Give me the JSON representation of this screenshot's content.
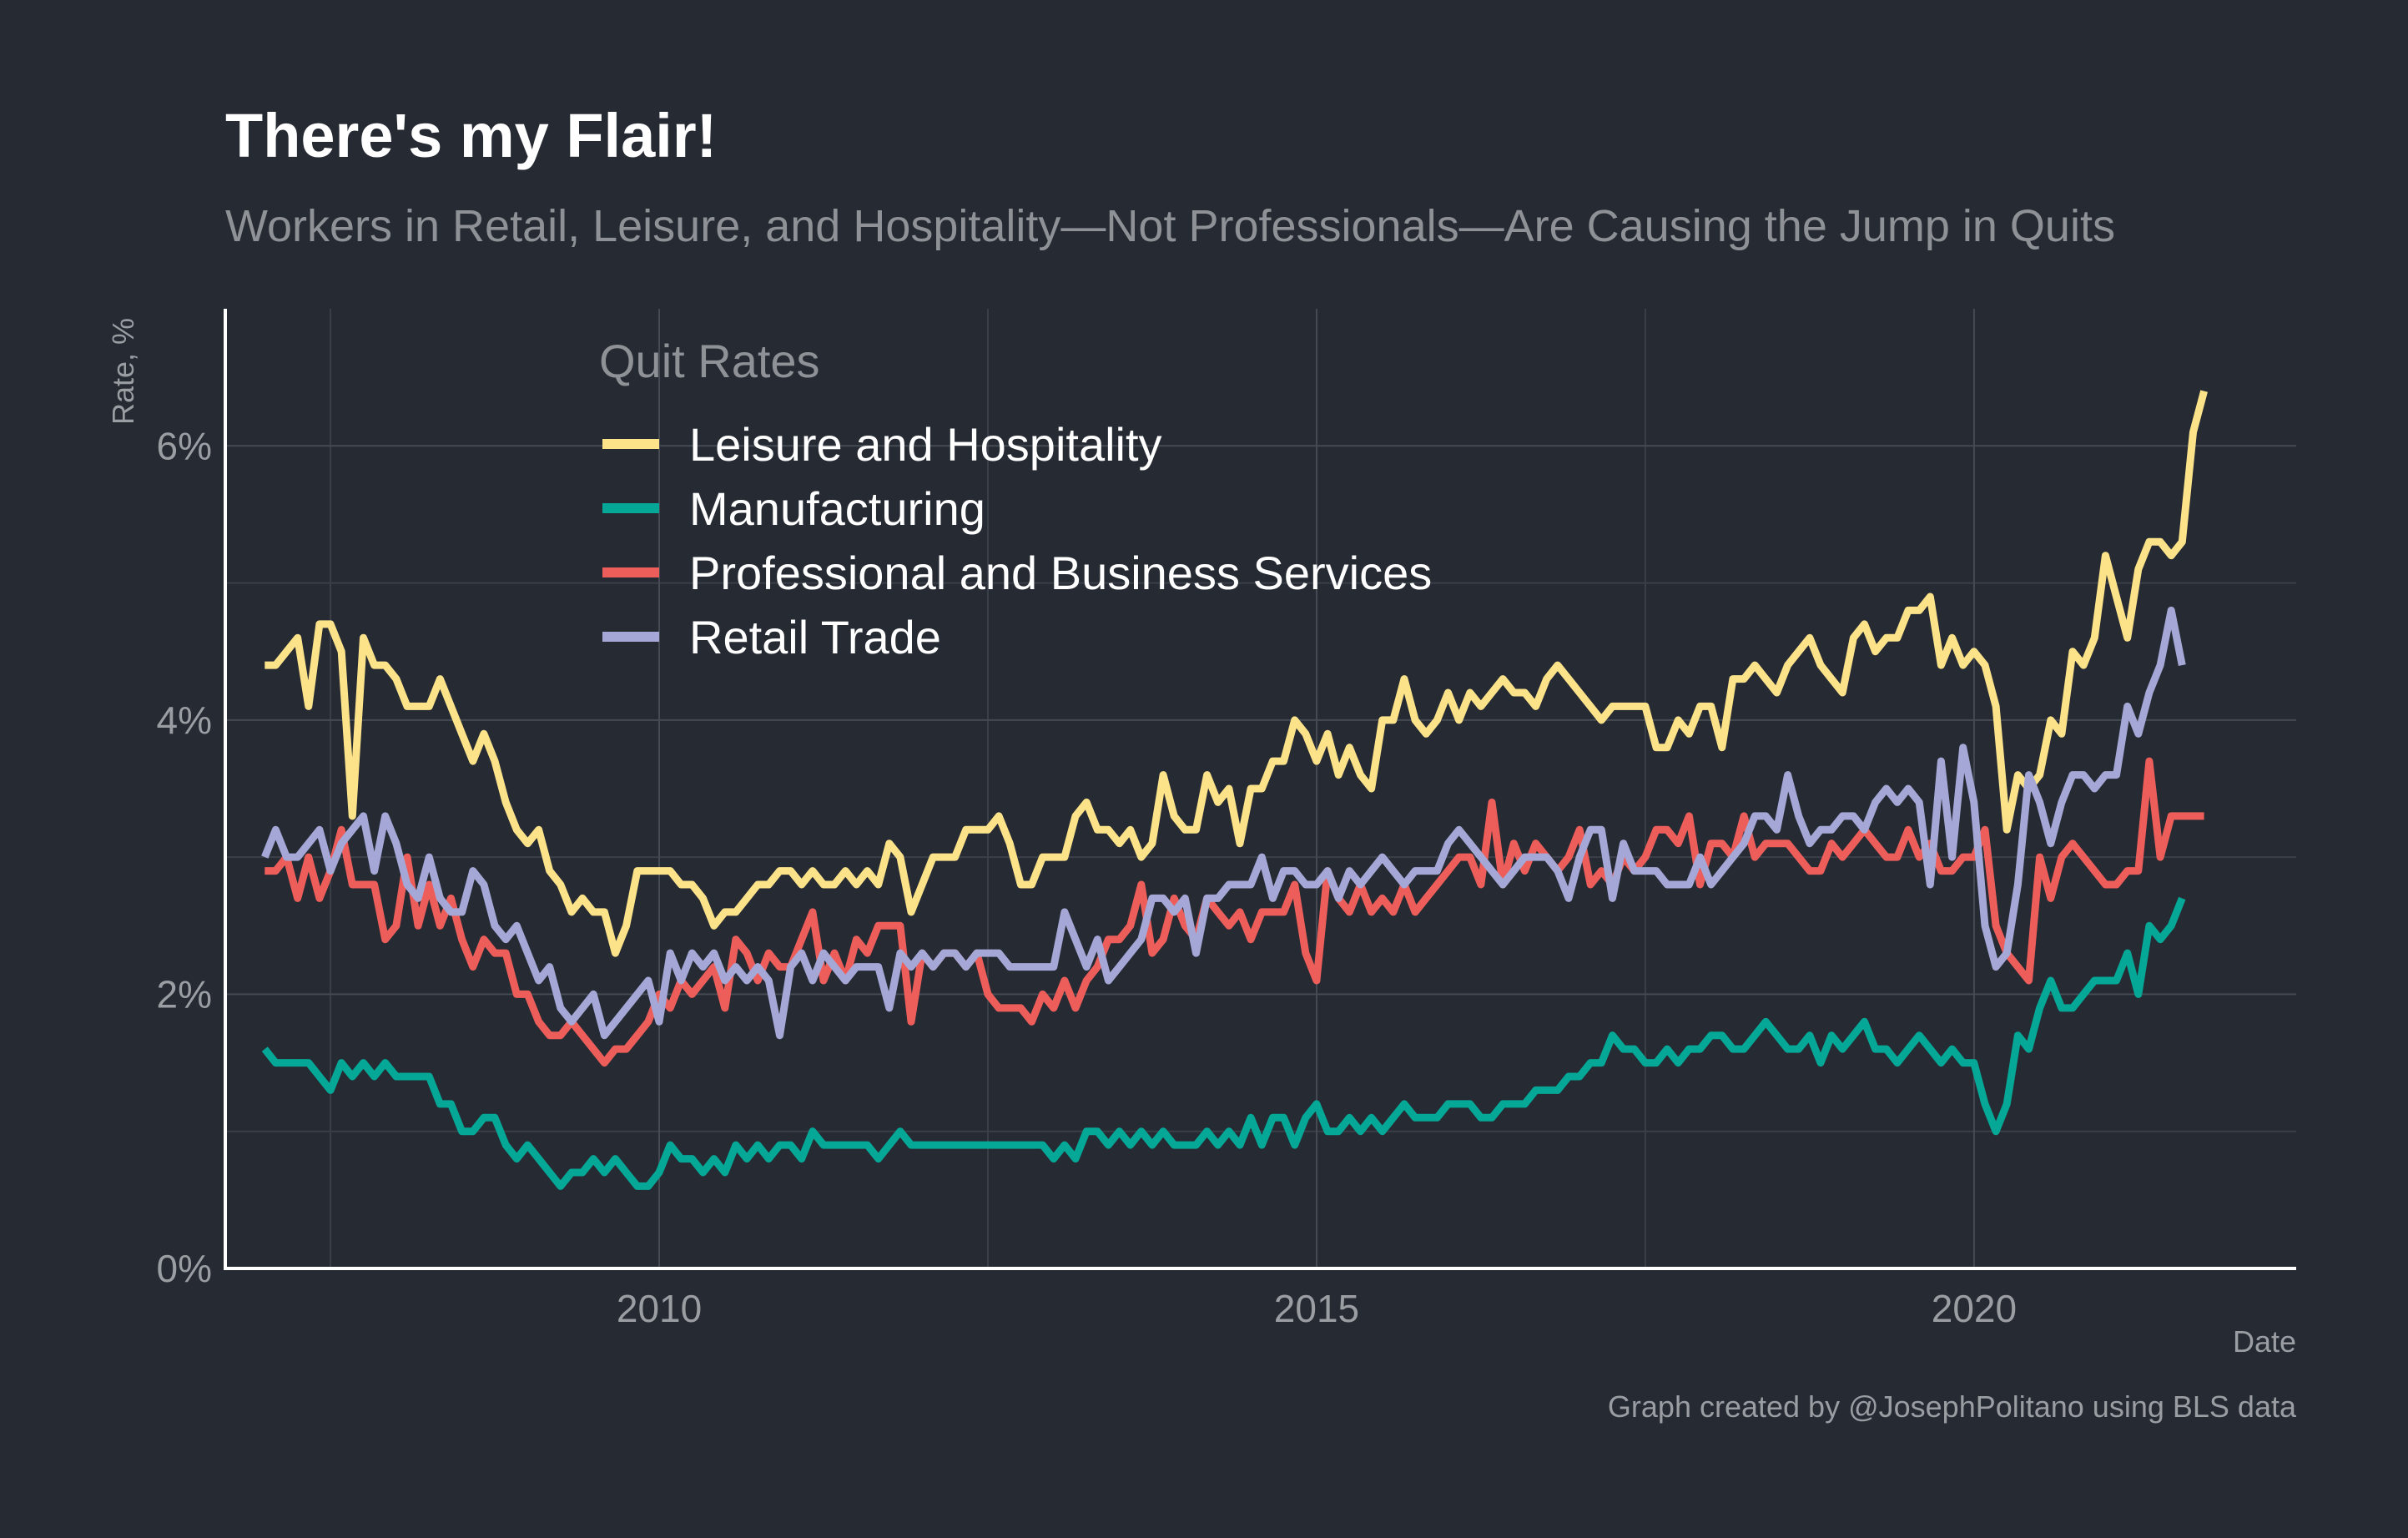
{
  "title": "There's my Flair!",
  "subtitle": "Workers in Retail, Leisure, and Hospitality—Not Professionals—Are Causing the Jump in Quits",
  "caption": "Graph created by @JosephPolitano using BLS data",
  "chart_data": {
    "type": "line",
    "xlabel": "Date",
    "ylabel": "Rate, %",
    "xlim": [
      2006.7,
      2022.45
    ],
    "ylim": [
      0,
      7
    ],
    "x_ticks": [
      2010,
      2015,
      2020
    ],
    "x_tick_labels": [
      "2010",
      "2015",
      "2020"
    ],
    "y_ticks": [
      0,
      2,
      4,
      6
    ],
    "y_tick_labels": [
      "0%",
      "2%",
      "4%",
      "6%"
    ],
    "grid": true,
    "legend_title": "Quit Rates",
    "legend_position": "top-left",
    "x_start": 2007.0,
    "x_step": 0.08333,
    "series": [
      {
        "name": "Leisure and Hospitality",
        "color": "#fce38a",
        "values": [
          4.4,
          4.4,
          4.5,
          4.6,
          4.1,
          4.7,
          4.7,
          4.5,
          3.3,
          4.6,
          4.4,
          4.4,
          4.3,
          4.1,
          4.1,
          4.1,
          4.3,
          4.1,
          3.9,
          3.7,
          3.9,
          3.7,
          3.4,
          3.2,
          3.1,
          3.2,
          2.9,
          2.8,
          2.6,
          2.7,
          2.6,
          2.6,
          2.3,
          2.5,
          2.9,
          2.9,
          2.9,
          2.9,
          2.8,
          2.8,
          2.7,
          2.5,
          2.6,
          2.6,
          2.7,
          2.8,
          2.8,
          2.9,
          2.9,
          2.8,
          2.9,
          2.8,
          2.8,
          2.9,
          2.8,
          2.9,
          2.8,
          3.1,
          3.0,
          2.6,
          2.8,
          3.0,
          3.0,
          3.0,
          3.2,
          3.2,
          3.2,
          3.3,
          3.1,
          2.8,
          2.8,
          3.0,
          3.0,
          3.0,
          3.3,
          3.4,
          3.2,
          3.2,
          3.1,
          3.2,
          3.0,
          3.1,
          3.6,
          3.3,
          3.2,
          3.2,
          3.6,
          3.4,
          3.5,
          3.1,
          3.5,
          3.5,
          3.7,
          3.7,
          4.0,
          3.9,
          3.7,
          3.9,
          3.6,
          3.8,
          3.6,
          3.5,
          4.0,
          4.0,
          4.3,
          4.0,
          3.9,
          4.0,
          4.2,
          4.0,
          4.2,
          4.1,
          4.2,
          4.3,
          4.2,
          4.2,
          4.1,
          4.3,
          4.4,
          4.3,
          4.2,
          4.1,
          4.0,
          4.1,
          4.1,
          4.1,
          4.1,
          3.8,
          3.8,
          4.0,
          3.9,
          4.1,
          4.1,
          3.8,
          4.3,
          4.3,
          4.4,
          4.3,
          4.2,
          4.4,
          4.5,
          4.6,
          4.4,
          4.3,
          4.2,
          4.6,
          4.7,
          4.5,
          4.6,
          4.6,
          4.8,
          4.8,
          4.9,
          4.4,
          4.6,
          4.4,
          4.5,
          4.4,
          4.1,
          3.2,
          3.6,
          3.5,
          3.6,
          4.0,
          3.9,
          4.5,
          4.4,
          4.6,
          5.2,
          4.9,
          4.6,
          5.1,
          5.3,
          5.3,
          5.2,
          5.3,
          6.1,
          6.4
        ]
      },
      {
        "name": "Manufacturing",
        "color": "#05a896",
        "values": [
          1.6,
          1.5,
          1.5,
          1.5,
          1.5,
          1.4,
          1.3,
          1.5,
          1.4,
          1.5,
          1.4,
          1.5,
          1.4,
          1.4,
          1.4,
          1.4,
          1.2,
          1.2,
          1.0,
          1.0,
          1.1,
          1.1,
          0.9,
          0.8,
          0.9,
          0.8,
          0.7,
          0.6,
          0.7,
          0.7,
          0.8,
          0.7,
          0.8,
          0.7,
          0.6,
          0.6,
          0.7,
          0.9,
          0.8,
          0.8,
          0.7,
          0.8,
          0.7,
          0.9,
          0.8,
          0.9,
          0.8,
          0.9,
          0.9,
          0.8,
          1.0,
          0.9,
          0.9,
          0.9,
          0.9,
          0.9,
          0.8,
          0.9,
          1.0,
          0.9,
          0.9,
          0.9,
          0.9,
          0.9,
          0.9,
          0.9,
          0.9,
          0.9,
          0.9,
          0.9,
          0.9,
          0.9,
          0.8,
          0.9,
          0.8,
          1.0,
          1.0,
          0.9,
          1.0,
          0.9,
          1.0,
          0.9,
          1.0,
          0.9,
          0.9,
          0.9,
          1.0,
          0.9,
          1.0,
          0.9,
          1.1,
          0.9,
          1.1,
          1.1,
          0.9,
          1.1,
          1.2,
          1.0,
          1.0,
          1.1,
          1.0,
          1.1,
          1.0,
          1.1,
          1.2,
          1.1,
          1.1,
          1.1,
          1.2,
          1.2,
          1.2,
          1.1,
          1.1,
          1.2,
          1.2,
          1.2,
          1.3,
          1.3,
          1.3,
          1.4,
          1.4,
          1.5,
          1.5,
          1.7,
          1.6,
          1.6,
          1.5,
          1.5,
          1.6,
          1.5,
          1.6,
          1.6,
          1.7,
          1.7,
          1.6,
          1.6,
          1.7,
          1.8,
          1.7,
          1.6,
          1.6,
          1.7,
          1.5,
          1.7,
          1.6,
          1.7,
          1.8,
          1.6,
          1.6,
          1.5,
          1.6,
          1.7,
          1.6,
          1.5,
          1.6,
          1.5,
          1.5,
          1.2,
          1.0,
          1.2,
          1.7,
          1.6,
          1.9,
          2.1,
          1.9,
          1.9,
          2.0,
          2.1,
          2.1,
          2.1,
          2.3,
          2.0,
          2.5,
          2.4,
          2.5,
          2.7
        ]
      },
      {
        "name": "Professional and Business Services",
        "color": "#ed5e5b",
        "values": [
          2.9,
          2.9,
          3.0,
          2.7,
          3.0,
          2.7,
          2.9,
          3.2,
          2.8,
          2.8,
          2.8,
          2.4,
          2.5,
          3.0,
          2.5,
          2.8,
          2.5,
          2.7,
          2.4,
          2.2,
          2.4,
          2.3,
          2.3,
          2.0,
          2.0,
          1.8,
          1.7,
          1.7,
          1.8,
          1.7,
          1.6,
          1.5,
          1.6,
          1.6,
          1.7,
          1.8,
          2.0,
          1.9,
          2.1,
          2.0,
          2.1,
          2.2,
          1.9,
          2.4,
          2.3,
          2.1,
          2.3,
          2.2,
          2.2,
          2.4,
          2.6,
          2.1,
          2.3,
          2.1,
          2.4,
          2.3,
          2.5,
          2.5,
          2.5,
          1.8,
          2.3,
          2.2,
          2.3,
          2.3,
          2.2,
          2.3,
          2.0,
          1.9,
          1.9,
          1.9,
          1.8,
          2.0,
          1.9,
          2.1,
          1.9,
          2.1,
          2.2,
          2.4,
          2.4,
          2.5,
          2.8,
          2.3,
          2.4,
          2.7,
          2.5,
          2.4,
          2.7,
          2.6,
          2.5,
          2.6,
          2.4,
          2.6,
          2.6,
          2.6,
          2.8,
          2.3,
          2.1,
          2.9,
          2.7,
          2.6,
          2.8,
          2.6,
          2.7,
          2.6,
          2.8,
          2.6,
          2.7,
          2.8,
          2.9,
          3.0,
          3.0,
          2.8,
          3.4,
          2.8,
          3.1,
          2.9,
          3.1,
          3.0,
          2.9,
          3.0,
          3.2,
          2.8,
          2.9,
          2.8,
          3.0,
          2.9,
          3.0,
          3.2,
          3.2,
          3.1,
          3.3,
          2.8,
          3.1,
          3.1,
          3.0,
          3.3,
          3.0,
          3.1,
          3.1,
          3.1,
          3.0,
          2.9,
          2.9,
          3.1,
          3.0,
          3.1,
          3.2,
          3.1,
          3.0,
          3.0,
          3.2,
          3.0,
          3.1,
          2.9,
          2.9,
          3.0,
          3.0,
          3.2,
          2.5,
          2.3,
          2.2,
          2.1,
          3.0,
          2.7,
          3.0,
          3.1,
          3.0,
          2.9,
          2.8,
          2.8,
          2.9,
          2.9,
          3.7,
          3.0,
          3.3,
          3.3,
          3.3,
          3.3
        ]
      },
      {
        "name": "Retail Trade",
        "color": "#a5a8d6",
        "values": [
          3.0,
          3.2,
          3.0,
          3.0,
          3.1,
          3.2,
          2.9,
          3.1,
          3.2,
          3.3,
          2.9,
          3.3,
          3.1,
          2.8,
          2.7,
          3.0,
          2.7,
          2.6,
          2.6,
          2.9,
          2.8,
          2.5,
          2.4,
          2.5,
          2.3,
          2.1,
          2.2,
          1.9,
          1.8,
          1.9,
          2.0,
          1.7,
          1.8,
          1.9,
          2.0,
          2.1,
          1.8,
          2.3,
          2.1,
          2.3,
          2.2,
          2.3,
          2.1,
          2.2,
          2.1,
          2.2,
          2.1,
          1.7,
          2.2,
          2.3,
          2.1,
          2.3,
          2.2,
          2.1,
          2.2,
          2.2,
          2.2,
          1.9,
          2.3,
          2.2,
          2.3,
          2.2,
          2.3,
          2.3,
          2.2,
          2.3,
          2.3,
          2.3,
          2.2,
          2.2,
          2.2,
          2.2,
          2.2,
          2.6,
          2.4,
          2.2,
          2.4,
          2.1,
          2.2,
          2.3,
          2.4,
          2.7,
          2.7,
          2.6,
          2.7,
          2.3,
          2.7,
          2.7,
          2.8,
          2.8,
          2.8,
          3.0,
          2.7,
          2.9,
          2.9,
          2.8,
          2.8,
          2.9,
          2.7,
          2.9,
          2.8,
          2.9,
          3.0,
          2.9,
          2.8,
          2.9,
          2.9,
          2.9,
          3.1,
          3.2,
          3.1,
          3.0,
          2.9,
          2.8,
          2.9,
          3.0,
          3.0,
          3.0,
          2.9,
          2.7,
          3.0,
          3.2,
          3.2,
          2.7,
          3.1,
          2.9,
          2.9,
          2.9,
          2.8,
          2.8,
          2.8,
          3.0,
          2.8,
          2.9,
          3.0,
          3.1,
          3.3,
          3.3,
          3.2,
          3.6,
          3.3,
          3.1,
          3.2,
          3.2,
          3.3,
          3.3,
          3.2,
          3.4,
          3.5,
          3.4,
          3.5,
          3.4,
          2.8,
          3.7,
          3.0,
          3.8,
          3.4,
          2.5,
          2.2,
          2.3,
          2.8,
          3.6,
          3.4,
          3.1,
          3.4,
          3.6,
          3.6,
          3.5,
          3.6,
          3.6,
          4.1,
          3.9,
          4.2,
          4.4,
          4.8,
          4.4
        ]
      }
    ]
  }
}
